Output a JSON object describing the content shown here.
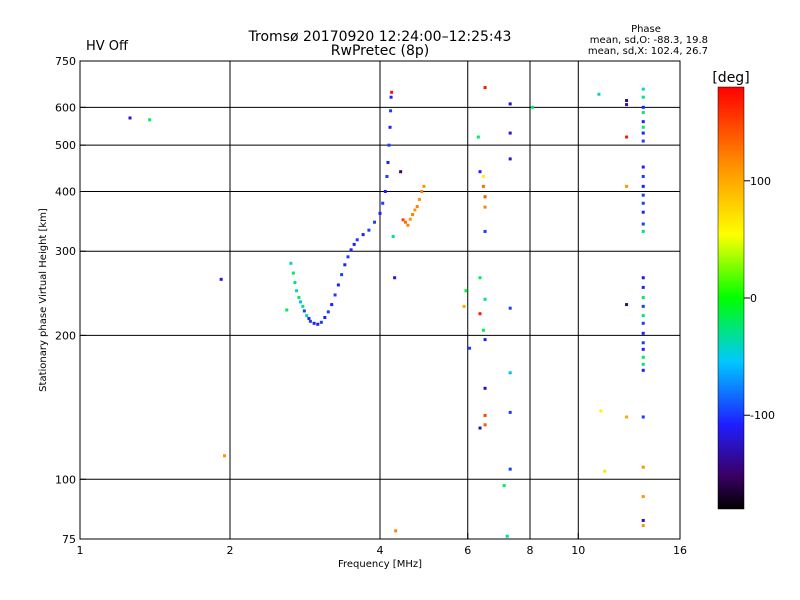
{
  "chart_data": {
    "type": "scatter",
    "title": "Tromsø 20170920 12:24:00–12:25:43",
    "subtitle": "RwPretec (8p)",
    "status_label": "HV Off",
    "status_color": "#cc0000",
    "phase_info": {
      "heading": "Phase",
      "line_o": "mean, sd,O: -88.3, 19.8",
      "line_x": "mean, sd,X: 102.4, 26.7"
    },
    "xlabel": "Frequency [MHz]",
    "ylabel": "Stationary phase Virtual Height [km]",
    "x_scale": "log",
    "y_scale": "log",
    "xlim": [
      1,
      16
    ],
    "ylim": [
      75,
      750
    ],
    "x_ticks": [
      {
        "value": 1,
        "label": "1"
      },
      {
        "value": 2,
        "label": "2"
      },
      {
        "value": 4,
        "label": "4"
      },
      {
        "value": 6,
        "label": "6"
      },
      {
        "value": 8,
        "label": "8"
      },
      {
        "value": 10,
        "label": "10"
      },
      {
        "value": 16,
        "label": "16"
      }
    ],
    "y_ticks": [
      {
        "value": 75,
        "label": "75"
      },
      {
        "value": 100,
        "label": "100"
      },
      {
        "value": 200,
        "label": "200"
      },
      {
        "value": 300,
        "label": "300"
      },
      {
        "value": 400,
        "label": "400"
      },
      {
        "value": 500,
        "label": "500"
      },
      {
        "value": 600,
        "label": "600"
      },
      {
        "value": 750,
        "label": "750"
      }
    ],
    "x_gridlines": [
      2,
      4,
      6,
      8,
      10
    ],
    "y_gridlines": [
      100,
      200,
      300,
      400,
      500,
      600
    ],
    "colorbar": {
      "label": "[deg]",
      "range": [
        -180,
        180
      ],
      "ticks": [
        {
          "value": 100,
          "label": "100"
        },
        {
          "value": 0,
          "label": "0"
        },
        {
          "value": -100,
          "label": "-100"
        }
      ]
    },
    "points": [
      {
        "x": 1.26,
        "y": 570,
        "phase": -120
      },
      {
        "x": 1.38,
        "y": 565,
        "phase": -20
      },
      {
        "x": 1.92,
        "y": 262,
        "phase": -120
      },
      {
        "x": 1.95,
        "y": 112,
        "phase": 110
      },
      {
        "x": 2.6,
        "y": 226,
        "phase": -20
      },
      {
        "x": 2.65,
        "y": 283,
        "phase": -40
      },
      {
        "x": 2.68,
        "y": 270,
        "phase": -20
      },
      {
        "x": 2.7,
        "y": 258,
        "phase": -30
      },
      {
        "x": 2.72,
        "y": 248,
        "phase": -40
      },
      {
        "x": 2.75,
        "y": 240,
        "phase": -20
      },
      {
        "x": 2.77,
        "y": 235,
        "phase": -60
      },
      {
        "x": 2.8,
        "y": 230,
        "phase": -30
      },
      {
        "x": 2.82,
        "y": 225,
        "phase": -100
      },
      {
        "x": 2.85,
        "y": 220,
        "phase": -40
      },
      {
        "x": 2.88,
        "y": 217,
        "phase": -110
      },
      {
        "x": 2.9,
        "y": 214,
        "phase": -100
      },
      {
        "x": 2.95,
        "y": 212,
        "phase": -110
      },
      {
        "x": 3.0,
        "y": 211,
        "phase": -110
      },
      {
        "x": 3.05,
        "y": 213,
        "phase": -100
      },
      {
        "x": 3.1,
        "y": 218,
        "phase": -110
      },
      {
        "x": 3.15,
        "y": 224,
        "phase": -100
      },
      {
        "x": 3.2,
        "y": 232,
        "phase": -110
      },
      {
        "x": 3.25,
        "y": 243,
        "phase": -100
      },
      {
        "x": 3.3,
        "y": 255,
        "phase": -110
      },
      {
        "x": 3.35,
        "y": 268,
        "phase": -100
      },
      {
        "x": 3.4,
        "y": 281,
        "phase": -110
      },
      {
        "x": 3.45,
        "y": 292,
        "phase": -100
      },
      {
        "x": 3.5,
        "y": 302,
        "phase": -110
      },
      {
        "x": 3.55,
        "y": 310,
        "phase": -110
      },
      {
        "x": 3.6,
        "y": 317,
        "phase": -100
      },
      {
        "x": 3.7,
        "y": 325,
        "phase": -110
      },
      {
        "x": 3.8,
        "y": 332,
        "phase": -100
      },
      {
        "x": 3.9,
        "y": 345,
        "phase": -100
      },
      {
        "x": 4.0,
        "y": 360,
        "phase": -110
      },
      {
        "x": 4.05,
        "y": 378,
        "phase": -100
      },
      {
        "x": 4.1,
        "y": 400,
        "phase": -110
      },
      {
        "x": 4.13,
        "y": 430,
        "phase": -100
      },
      {
        "x": 4.15,
        "y": 460,
        "phase": -110
      },
      {
        "x": 4.17,
        "y": 500,
        "phase": -100
      },
      {
        "x": 4.19,
        "y": 545,
        "phase": -110
      },
      {
        "x": 4.2,
        "y": 590,
        "phase": -100
      },
      {
        "x": 4.21,
        "y": 630,
        "phase": -110
      },
      {
        "x": 4.22,
        "y": 645,
        "phase": 170
      },
      {
        "x": 4.25,
        "y": 322,
        "phase": -30
      },
      {
        "x": 4.28,
        "y": 264,
        "phase": -120
      },
      {
        "x": 4.3,
        "y": 78,
        "phase": 120
      },
      {
        "x": 4.4,
        "y": 440,
        "phase": -150
      },
      {
        "x": 4.45,
        "y": 349,
        "phase": 150
      },
      {
        "x": 4.5,
        "y": 345,
        "phase": 130
      },
      {
        "x": 4.55,
        "y": 340,
        "phase": 120
      },
      {
        "x": 4.6,
        "y": 350,
        "phase": 110
      },
      {
        "x": 4.65,
        "y": 358,
        "phase": 120
      },
      {
        "x": 4.7,
        "y": 366,
        "phase": 110
      },
      {
        "x": 4.75,
        "y": 372,
        "phase": 120
      },
      {
        "x": 4.8,
        "y": 385,
        "phase": 110
      },
      {
        "x": 4.85,
        "y": 400,
        "phase": 120
      },
      {
        "x": 4.9,
        "y": 410,
        "phase": 110
      },
      {
        "x": 5.9,
        "y": 230,
        "phase": 100
      },
      {
        "x": 5.95,
        "y": 248,
        "phase": -10
      },
      {
        "x": 6.05,
        "y": 188,
        "phase": -100
      },
      {
        "x": 6.3,
        "y": 520,
        "phase": -20
      },
      {
        "x": 6.35,
        "y": 440,
        "phase": -110
      },
      {
        "x": 6.35,
        "y": 264,
        "phase": -20
      },
      {
        "x": 6.35,
        "y": 222,
        "phase": 170
      },
      {
        "x": 6.35,
        "y": 128,
        "phase": -130
      },
      {
        "x": 6.45,
        "y": 430,
        "phase": 60
      },
      {
        "x": 6.45,
        "y": 410,
        "phase": 130
      },
      {
        "x": 6.45,
        "y": 205,
        "phase": -20
      },
      {
        "x": 6.5,
        "y": 660,
        "phase": 170
      },
      {
        "x": 6.5,
        "y": 390,
        "phase": 140
      },
      {
        "x": 6.5,
        "y": 371,
        "phase": 120
      },
      {
        "x": 6.5,
        "y": 330,
        "phase": -100
      },
      {
        "x": 6.5,
        "y": 238,
        "phase": -30
      },
      {
        "x": 6.5,
        "y": 196,
        "phase": -110
      },
      {
        "x": 6.5,
        "y": 155,
        "phase": -130
      },
      {
        "x": 6.5,
        "y": 136,
        "phase": 150
      },
      {
        "x": 6.5,
        "y": 130,
        "phase": 140
      },
      {
        "x": 7.1,
        "y": 97,
        "phase": -20
      },
      {
        "x": 7.2,
        "y": 76,
        "phase": -30
      },
      {
        "x": 7.3,
        "y": 610,
        "phase": -130
      },
      {
        "x": 7.3,
        "y": 530,
        "phase": -120
      },
      {
        "x": 7.3,
        "y": 468,
        "phase": -120
      },
      {
        "x": 7.3,
        "y": 228,
        "phase": -100
      },
      {
        "x": 7.3,
        "y": 167,
        "phase": -60
      },
      {
        "x": 7.3,
        "y": 138,
        "phase": -100
      },
      {
        "x": 7.3,
        "y": 105,
        "phase": -100
      },
      {
        "x": 8.1,
        "y": 600,
        "phase": -20
      },
      {
        "x": 11.0,
        "y": 639,
        "phase": -40
      },
      {
        "x": 11.1,
        "y": 139,
        "phase": 60
      },
      {
        "x": 11.3,
        "y": 104,
        "phase": 70
      },
      {
        "x": 12.5,
        "y": 620,
        "phase": -140
      },
      {
        "x": 12.5,
        "y": 608,
        "phase": -130
      },
      {
        "x": 12.5,
        "y": 520,
        "phase": 170
      },
      {
        "x": 12.5,
        "y": 410,
        "phase": 110
      },
      {
        "x": 12.5,
        "y": 232,
        "phase": -140
      },
      {
        "x": 12.5,
        "y": 135,
        "phase": 100
      },
      {
        "x": 13.5,
        "y": 655,
        "phase": -40
      },
      {
        "x": 13.5,
        "y": 630,
        "phase": -30
      },
      {
        "x": 13.5,
        "y": 600,
        "phase": -110
      },
      {
        "x": 13.5,
        "y": 585,
        "phase": -20
      },
      {
        "x": 13.5,
        "y": 560,
        "phase": -110
      },
      {
        "x": 13.5,
        "y": 545,
        "phase": -20
      },
      {
        "x": 13.5,
        "y": 530,
        "phase": -110
      },
      {
        "x": 13.5,
        "y": 510,
        "phase": -100
      },
      {
        "x": 13.5,
        "y": 450,
        "phase": -110
      },
      {
        "x": 13.5,
        "y": 430,
        "phase": -100
      },
      {
        "x": 13.5,
        "y": 410,
        "phase": -110
      },
      {
        "x": 13.5,
        "y": 393,
        "phase": -100
      },
      {
        "x": 13.5,
        "y": 378,
        "phase": -100
      },
      {
        "x": 13.5,
        "y": 362,
        "phase": -110
      },
      {
        "x": 13.5,
        "y": 342,
        "phase": -100
      },
      {
        "x": 13.5,
        "y": 330,
        "phase": -30
      },
      {
        "x": 13.5,
        "y": 264,
        "phase": -120
      },
      {
        "x": 13.5,
        "y": 252,
        "phase": -110
      },
      {
        "x": 13.5,
        "y": 240,
        "phase": -20
      },
      {
        "x": 13.5,
        "y": 230,
        "phase": -100
      },
      {
        "x": 13.5,
        "y": 220,
        "phase": -30
      },
      {
        "x": 13.5,
        "y": 212,
        "phase": -100
      },
      {
        "x": 13.5,
        "y": 202,
        "phase": -110
      },
      {
        "x": 13.5,
        "y": 193,
        "phase": -100
      },
      {
        "x": 13.5,
        "y": 187,
        "phase": -110
      },
      {
        "x": 13.5,
        "y": 180,
        "phase": -20
      },
      {
        "x": 13.5,
        "y": 174,
        "phase": -30
      },
      {
        "x": 13.5,
        "y": 169,
        "phase": -110
      },
      {
        "x": 13.5,
        "y": 135,
        "phase": -100
      },
      {
        "x": 13.5,
        "y": 106,
        "phase": 110
      },
      {
        "x": 13.5,
        "y": 92,
        "phase": 110
      },
      {
        "x": 13.5,
        "y": 82,
        "phase": -130
      },
      {
        "x": 13.5,
        "y": 80,
        "phase": 110
      }
    ]
  }
}
